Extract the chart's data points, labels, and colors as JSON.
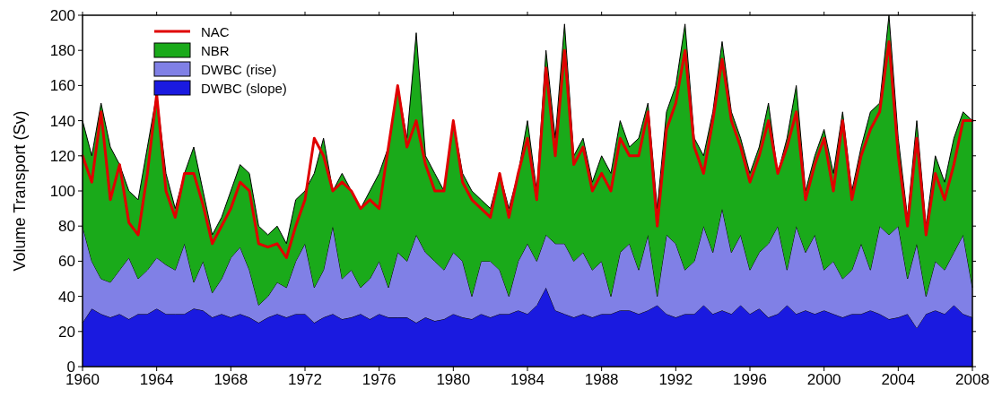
{
  "chart_data": {
    "type": "area",
    "ylabel": "Volume Transport (Sv)",
    "stacked": true,
    "legend": "top left",
    "xlim": [
      1960,
      2008
    ],
    "xticks": [
      1960,
      1964,
      1968,
      1972,
      1976,
      1980,
      1984,
      1988,
      1992,
      1996,
      2000,
      2004,
      2008
    ],
    "ylim": [
      0,
      200
    ],
    "yticks": [
      0,
      20,
      40,
      60,
      80,
      100,
      120,
      140,
      160,
      180,
      200
    ],
    "x": [
      1960,
      1960.5,
      1961,
      1961.5,
      1962,
      1962.5,
      1963,
      1963.5,
      1964,
      1964.5,
      1965,
      1965.5,
      1966,
      1966.5,
      1967,
      1967.5,
      1968,
      1968.5,
      1969,
      1969.5,
      1970,
      1970.5,
      1971,
      1971.5,
      1972,
      1972.5,
      1973,
      1973.5,
      1974,
      1974.5,
      1975,
      1975.5,
      1976,
      1976.5,
      1977,
      1977.5,
      1978,
      1978.5,
      1979,
      1979.5,
      1980,
      1980.5,
      1981,
      1981.5,
      1982,
      1982.5,
      1983,
      1983.5,
      1984,
      1984.5,
      1985,
      1985.5,
      1986,
      1986.5,
      1987,
      1987.5,
      1988,
      1988.5,
      1989,
      1989.5,
      1990,
      1990.5,
      1991,
      1991.5,
      1992,
      1992.5,
      1993,
      1993.5,
      1994,
      1994.5,
      1995,
      1995.5,
      1996,
      1996.5,
      1997,
      1997.5,
      1998,
      1998.5,
      1999,
      1999.5,
      2000,
      2000.5,
      2001,
      2001.5,
      2002,
      2002.5,
      2003,
      2003.5,
      2004,
      2004.5,
      2005,
      2005.5,
      2006,
      2006.5,
      2007,
      2007.5,
      2008
    ],
    "series": [
      {
        "name": "DWBC (slope)",
        "color": "#1a1ae0",
        "values": [
          25,
          33,
          30,
          28,
          30,
          27,
          30,
          30,
          33,
          30,
          30,
          30,
          33,
          32,
          28,
          30,
          28,
          30,
          28,
          25,
          28,
          30,
          28,
          30,
          30,
          25,
          28,
          30,
          27,
          28,
          30,
          27,
          30,
          28,
          28,
          28,
          25,
          28,
          26,
          27,
          30,
          28,
          27,
          30,
          28,
          30,
          30,
          32,
          30,
          35,
          45,
          32,
          30,
          28,
          30,
          28,
          30,
          30,
          32,
          32,
          30,
          32,
          35,
          30,
          28,
          30,
          30,
          35,
          30,
          32,
          30,
          35,
          30,
          33,
          28,
          30,
          35,
          30,
          32,
          30,
          32,
          30,
          28,
          30,
          30,
          32,
          30,
          27,
          28,
          30,
          22,
          30,
          32,
          30,
          35,
          30,
          28
        ]
      },
      {
        "name": "DWBC (rise)",
        "color": "#8080e6",
        "values": [
          55,
          27,
          20,
          20,
          25,
          35,
          20,
          25,
          29,
          28,
          25,
          40,
          15,
          28,
          14,
          20,
          34,
          38,
          27,
          10,
          12,
          18,
          17,
          30,
          40,
          20,
          27,
          50,
          23,
          27,
          15,
          23,
          30,
          17,
          37,
          32,
          50,
          37,
          34,
          28,
          35,
          32,
          13,
          30,
          32,
          25,
          10,
          28,
          40,
          25,
          30,
          38,
          40,
          32,
          35,
          27,
          30,
          10,
          33,
          38,
          25,
          43,
          5,
          45,
          42,
          25,
          30,
          45,
          35,
          58,
          35,
          40,
          25,
          32,
          42,
          50,
          20,
          50,
          33,
          45,
          23,
          30,
          22,
          25,
          40,
          23,
          50,
          48,
          52,
          20,
          48,
          10,
          28,
          25,
          30,
          45,
          17
        ]
      },
      {
        "name": "NBR",
        "color": "#1aaa1a",
        "values": [
          60,
          60,
          100,
          77,
          60,
          38,
          45,
          70,
          93,
          52,
          35,
          40,
          77,
          40,
          33,
          35,
          38,
          47,
          55,
          45,
          35,
          32,
          25,
          35,
          30,
          65,
          75,
          20,
          60,
          45,
          45,
          50,
          50,
          80,
          95,
          70,
          115,
          55,
          50,
          45,
          75,
          50,
          60,
          35,
          30,
          55,
          50,
          50,
          70,
          40,
          105,
          60,
          125,
          60,
          65,
          50,
          60,
          70,
          75,
          55,
          75,
          75,
          50,
          70,
          90,
          140,
          70,
          40,
          80,
          95,
          80,
          55,
          55,
          60,
          80,
          30,
          75,
          80,
          35,
          45,
          80,
          50,
          95,
          45,
          55,
          90,
          70,
          125,
          50,
          35,
          70,
          40,
          60,
          50,
          65,
          70,
          95
        ]
      },
      {
        "name": "NAC",
        "type": "line",
        "color": "#e00000",
        "values": [
          120,
          105,
          145,
          95,
          115,
          82,
          75,
          110,
          155,
          100,
          85,
          110,
          110,
          92,
          70,
          80,
          90,
          105,
          100,
          70,
          68,
          70,
          62,
          80,
          95,
          130,
          120,
          100,
          105,
          100,
          90,
          95,
          90,
          125,
          160,
          125,
          140,
          115,
          100,
          100,
          140,
          105,
          95,
          90,
          85,
          110,
          85,
          110,
          130,
          95,
          170,
          120,
          180,
          115,
          125,
          100,
          110,
          100,
          130,
          120,
          120,
          145,
          80,
          135,
          150,
          180,
          125,
          110,
          140,
          175,
          140,
          125,
          105,
          120,
          140,
          110,
          125,
          145,
          95,
          115,
          130,
          100,
          140,
          95,
          120,
          135,
          145,
          185,
          120,
          80,
          130,
          75,
          110,
          95,
          115,
          140,
          140
        ]
      }
    ]
  }
}
